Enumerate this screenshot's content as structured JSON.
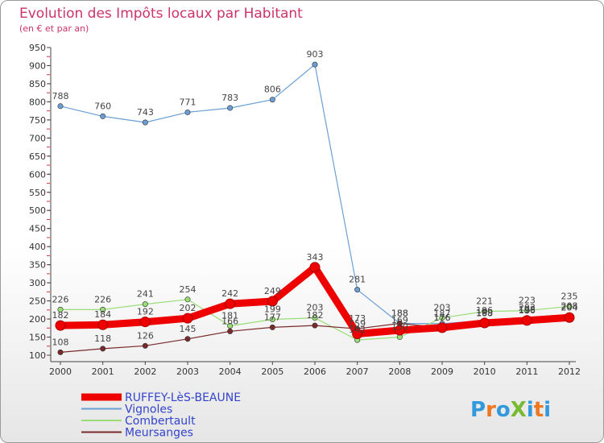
{
  "chart_data": {
    "type": "line",
    "title": "Evolution des Impôts locaux par Habitant",
    "subtitle": "(en € et par an)",
    "xlabel": "",
    "ylabel": "",
    "x": [
      "2000",
      "2001",
      "2002",
      "2003",
      "2004",
      "2005",
      "2006",
      "2007",
      "2008",
      "2009",
      "2010",
      "2011",
      "2012"
    ],
    "ylim": [
      100,
      950
    ],
    "yticks": [
      100,
      150,
      200,
      250,
      300,
      350,
      400,
      450,
      500,
      550,
      600,
      650,
      700,
      750,
      800,
      850,
      900,
      950
    ],
    "grid": false,
    "legend_position": "bottom-left",
    "series": [
      {
        "name": "Vignoles",
        "color": "#6b9fd4",
        "values": [
          788,
          760,
          743,
          771,
          783,
          806,
          903,
          281,
          188,
          187,
          196,
          203,
          204
        ]
      },
      {
        "name": "Combertault",
        "color": "#99dd77",
        "values": [
          226,
          226,
          241,
          254,
          181,
          199,
          203,
          142,
          150,
          203,
          221,
          223,
          235
        ]
      },
      {
        "name": "Meursanges",
        "color": "#7a2a2a",
        "values": [
          108,
          118,
          126,
          145,
          166,
          177,
          182,
          173,
          188,
          176,
          188,
          198,
          208
        ]
      },
      {
        "name": "RUFFEY-LèS-BEAUNE",
        "color": "#ee0000",
        "values": [
          182,
          184,
          192,
          202,
          242,
          249,
          343,
          159,
          169,
          176,
          189,
          196,
          204
        ]
      }
    ]
  },
  "brand": {
    "text": "ProXiti"
  }
}
